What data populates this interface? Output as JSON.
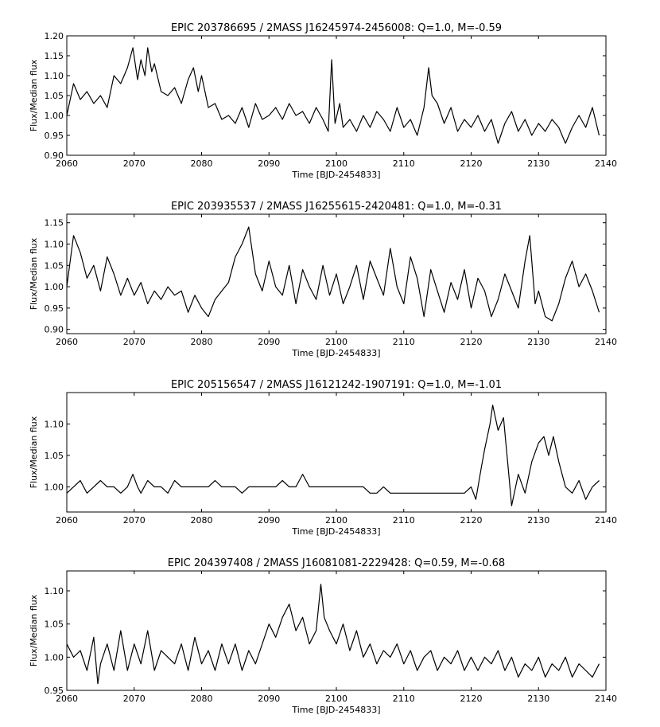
{
  "chart_data": [
    {
      "type": "line",
      "title": "EPIC 203786695 / 2MASS J16245974-2456008: Q=1.0, M=-0.59",
      "xlabel": "Time [BJD-2454833]",
      "ylabel": "Flux/Median flux",
      "xlim": [
        2060,
        2140
      ],
      "ylim": [
        0.9,
        1.2
      ],
      "xticks": [
        2060,
        2070,
        2080,
        2090,
        2100,
        2110,
        2120,
        2130,
        2140
      ],
      "xtick_labels": [
        "2060",
        "2070",
        "2080",
        "2090",
        "2100",
        "2110",
        "2120",
        "2130",
        "2140"
      ],
      "yticks": [
        0.9,
        0.95,
        1.0,
        1.05,
        1.1,
        1.15,
        1.2
      ],
      "ytick_labels": [
        "0.90",
        "0.95",
        "1.00",
        "1.05",
        "1.10",
        "1.15",
        "1.20"
      ],
      "grid": false,
      "series": [
        {
          "x": [
            2060,
            2061,
            2062,
            2063,
            2064,
            2065,
            2066,
            2067,
            2068,
            2069,
            2069.8,
            2070.5,
            2071,
            2071.6,
            2072,
            2072.6,
            2073,
            2074,
            2075,
            2076,
            2077,
            2078,
            2078.8,
            2079.5,
            2080,
            2081,
            2082,
            2083,
            2084,
            2085,
            2086,
            2087,
            2088,
            2089,
            2090,
            2091,
            2092,
            2093,
            2094,
            2095,
            2096,
            2097,
            2098,
            2098.8,
            2099.3,
            2099.8,
            2100.5,
            2101,
            2102,
            2103,
            2104,
            2105,
            2106,
            2107,
            2108,
            2109,
            2110,
            2111,
            2112,
            2113,
            2113.7,
            2114.2,
            2115,
            2116,
            2117,
            2118,
            2119,
            2120,
            2121,
            2122,
            2123,
            2124,
            2125,
            2126,
            2127,
            2128,
            2129,
            2130,
            2131,
            2132,
            2133,
            2134,
            2135,
            2136,
            2137,
            2138,
            2139
          ],
          "y": [
            1.0,
            1.08,
            1.04,
            1.06,
            1.03,
            1.05,
            1.02,
            1.1,
            1.08,
            1.12,
            1.17,
            1.09,
            1.14,
            1.1,
            1.17,
            1.11,
            1.13,
            1.06,
            1.05,
            1.07,
            1.03,
            1.09,
            1.12,
            1.06,
            1.1,
            1.02,
            1.03,
            0.99,
            1.0,
            0.98,
            1.02,
            0.97,
            1.03,
            0.99,
            1.0,
            1.02,
            0.99,
            1.03,
            1.0,
            1.01,
            0.98,
            1.02,
            0.99,
            0.96,
            1.14,
            0.98,
            1.03,
            0.97,
            0.99,
            0.96,
            1.0,
            0.97,
            1.01,
            0.99,
            0.96,
            1.02,
            0.97,
            0.99,
            0.95,
            1.02,
            1.12,
            1.05,
            1.03,
            0.98,
            1.02,
            0.96,
            0.99,
            0.97,
            1.0,
            0.96,
            0.99,
            0.93,
            0.98,
            1.01,
            0.96,
            0.99,
            0.95,
            0.98,
            0.96,
            0.99,
            0.97,
            0.93,
            0.97,
            1.0,
            0.97,
            1.02,
            0.95
          ]
        }
      ]
    },
    {
      "type": "line",
      "title": "EPIC 203935537 / 2MASS J16255615-2420481: Q=1.0, M=-0.31",
      "xlabel": "Time [BJD-2454833]",
      "ylabel": "Flux/Median flux",
      "xlim": [
        2060,
        2140
      ],
      "ylim": [
        0.89,
        1.17
      ],
      "xticks": [
        2060,
        2070,
        2080,
        2090,
        2100,
        2110,
        2120,
        2130,
        2140
      ],
      "xtick_labels": [
        "2060",
        "2070",
        "2080",
        "2090",
        "2100",
        "2110",
        "2120",
        "2130",
        "2140"
      ],
      "yticks": [
        0.9,
        0.95,
        1.0,
        1.05,
        1.1,
        1.15
      ],
      "ytick_labels": [
        "0.90",
        "0.95",
        "1.00",
        "1.05",
        "1.10",
        "1.15"
      ],
      "grid": false,
      "series": [
        {
          "x": [
            2060,
            2061,
            2062,
            2063,
            2064,
            2065,
            2066,
            2067,
            2068,
            2069,
            2070,
            2071,
            2072,
            2073,
            2074,
            2075,
            2076,
            2077,
            2078,
            2079,
            2080,
            2081,
            2082,
            2083,
            2084,
            2085,
            2086,
            2087,
            2088,
            2089,
            2090,
            2091,
            2092,
            2093,
            2094,
            2095,
            2096,
            2097,
            2098,
            2099,
            2100,
            2101,
            2102,
            2103,
            2104,
            2105,
            2106,
            2107,
            2108,
            2109,
            2110,
            2111,
            2112,
            2113,
            2114,
            2115,
            2116,
            2117,
            2118,
            2119,
            2120,
            2121,
            2122,
            2123,
            2124,
            2125,
            2126,
            2127,
            2128,
            2128.7,
            2129.5,
            2130,
            2131,
            2132,
            2133,
            2134,
            2135,
            2136,
            2137,
            2138,
            2139
          ],
          "y": [
            1.0,
            1.12,
            1.08,
            1.02,
            1.05,
            0.99,
            1.07,
            1.03,
            0.98,
            1.02,
            0.98,
            1.01,
            0.96,
            0.99,
            0.97,
            1.0,
            0.98,
            0.99,
            0.94,
            0.98,
            0.95,
            0.93,
            0.97,
            0.99,
            1.01,
            1.07,
            1.1,
            1.14,
            1.03,
            0.99,
            1.06,
            1.0,
            0.98,
            1.05,
            0.96,
            1.04,
            1.0,
            0.97,
            1.05,
            0.98,
            1.03,
            0.96,
            1.0,
            1.05,
            0.97,
            1.06,
            1.02,
            0.98,
            1.09,
            1.0,
            0.96,
            1.07,
            1.02,
            0.93,
            1.04,
            0.99,
            0.94,
            1.01,
            0.97,
            1.04,
            0.95,
            1.02,
            0.99,
            0.93,
            0.97,
            1.03,
            0.99,
            0.95,
            1.06,
            1.12,
            0.96,
            0.99,
            0.93,
            0.92,
            0.96,
            1.02,
            1.06,
            1.0,
            1.03,
            0.99,
            0.94
          ]
        }
      ]
    },
    {
      "type": "line",
      "title": "EPIC 205156547 / 2MASS J16121242-1907191: Q=1.0, M=-1.01",
      "xlabel": "Time [BJD-2454833]",
      "ylabel": "Flux/Median flux",
      "xlim": [
        2060,
        2140
      ],
      "ylim": [
        0.96,
        1.15
      ],
      "xticks": [
        2060,
        2070,
        2080,
        2090,
        2100,
        2110,
        2120,
        2130,
        2140
      ],
      "xtick_labels": [
        "2060",
        "2070",
        "2080",
        "2090",
        "2100",
        "2110",
        "2120",
        "2130",
        "2140"
      ],
      "yticks": [
        1.0,
        1.05,
        1.1
      ],
      "ytick_labels": [
        "1.00",
        "1.05",
        "1.10"
      ],
      "grid": false,
      "series": [
        {
          "x": [
            2060,
            2061,
            2062,
            2063,
            2064,
            2065,
            2066,
            2067,
            2068,
            2069,
            2069.8,
            2070.5,
            2071,
            2072,
            2073,
            2074,
            2075,
            2076,
            2077,
            2078,
            2079,
            2080,
            2081,
            2082,
            2083,
            2084,
            2085,
            2086,
            2087,
            2088,
            2089,
            2090,
            2091,
            2092,
            2093,
            2094,
            2095,
            2096,
            2097,
            2098,
            2099,
            2100,
            2101,
            2102,
            2103,
            2104,
            2105,
            2106,
            2107,
            2108,
            2109,
            2110,
            2111,
            2112,
            2113,
            2114,
            2115,
            2116,
            2117,
            2118,
            2119,
            2120,
            2120.7,
            2121.5,
            2122,
            2122.8,
            2123.2,
            2124,
            2124.8,
            2125.5,
            2126,
            2127,
            2128,
            2129,
            2130,
            2130.8,
            2131.5,
            2132.2,
            2133,
            2134,
            2135,
            2136,
            2137,
            2138,
            2139
          ],
          "y": [
            0.99,
            1.0,
            1.01,
            0.99,
            1.0,
            1.01,
            1.0,
            1.0,
            0.99,
            1.0,
            1.02,
            1.0,
            0.99,
            1.01,
            1.0,
            1.0,
            0.99,
            1.01,
            1.0,
            1.0,
            1.0,
            1.0,
            1.0,
            1.01,
            1.0,
            1.0,
            1.0,
            0.99,
            1.0,
            1.0,
            1.0,
            1.0,
            1.0,
            1.01,
            1.0,
            1.0,
            1.02,
            1.0,
            1.0,
            1.0,
            1.0,
            1.0,
            1.0,
            1.0,
            1.0,
            1.0,
            0.99,
            0.99,
            1.0,
            0.99,
            0.99,
            0.99,
            0.99,
            0.99,
            0.99,
            0.99,
            0.99,
            0.99,
            0.99,
            0.99,
            0.99,
            1.0,
            0.98,
            1.03,
            1.06,
            1.1,
            1.13,
            1.09,
            1.11,
            1.03,
            0.97,
            1.02,
            0.99,
            1.04,
            1.07,
            1.08,
            1.05,
            1.08,
            1.04,
            1.0,
            0.99,
            1.01,
            0.98,
            1.0,
            1.01
          ]
        }
      ]
    },
    {
      "type": "line",
      "title": "EPIC 204397408 / 2MASS J16081081-2229428: Q=0.59, M=-0.68",
      "xlabel": "Time [BJD-2454833]",
      "ylabel": "Flux/Median flux",
      "xlim": [
        2060,
        2140
      ],
      "ylim": [
        0.95,
        1.13
      ],
      "xticks": [
        2060,
        2070,
        2080,
        2090,
        2100,
        2110,
        2120,
        2130,
        2140
      ],
      "xtick_labels": [
        "2060",
        "2070",
        "2080",
        "2090",
        "2100",
        "2110",
        "2120",
        "2130",
        "2140"
      ],
      "yticks": [
        0.95,
        1.0,
        1.05,
        1.1
      ],
      "ytick_labels": [
        "0.95",
        "1.00",
        "1.05",
        "1.10"
      ],
      "grid": false,
      "series": [
        {
          "x": [
            2060,
            2061,
            2062,
            2063,
            2064,
            2064.6,
            2065,
            2066,
            2067,
            2068,
            2069,
            2070,
            2071,
            2072,
            2073,
            2074,
            2075,
            2076,
            2077,
            2078,
            2079,
            2080,
            2081,
            2082,
            2083,
            2084,
            2085,
            2086,
            2087,
            2088,
            2089,
            2090,
            2091,
            2092,
            2093,
            2094,
            2095,
            2096,
            2097,
            2097.7,
            2098.2,
            2099,
            2100,
            2101,
            2102,
            2103,
            2104,
            2105,
            2106,
            2107,
            2108,
            2109,
            2110,
            2111,
            2112,
            2113,
            2114,
            2115,
            2116,
            2117,
            2118,
            2119,
            2120,
            2121,
            2122,
            2123,
            2124,
            2125,
            2126,
            2127,
            2128,
            2129,
            2130,
            2131,
            2132,
            2133,
            2134,
            2135,
            2136,
            2137,
            2138,
            2139
          ],
          "y": [
            1.02,
            1.0,
            1.01,
            0.98,
            1.03,
            0.96,
            0.99,
            1.02,
            0.98,
            1.04,
            0.98,
            1.02,
            0.99,
            1.04,
            0.98,
            1.01,
            1.0,
            0.99,
            1.02,
            0.98,
            1.03,
            0.99,
            1.01,
            0.98,
            1.02,
            0.99,
            1.02,
            0.98,
            1.01,
            0.99,
            1.02,
            1.05,
            1.03,
            1.06,
            1.08,
            1.04,
            1.06,
            1.02,
            1.04,
            1.11,
            1.06,
            1.04,
            1.02,
            1.05,
            1.01,
            1.04,
            1.0,
            1.02,
            0.99,
            1.01,
            1.0,
            1.02,
            0.99,
            1.01,
            0.98,
            1.0,
            1.01,
            0.98,
            1.0,
            0.99,
            1.01,
            0.98,
            1.0,
            0.98,
            1.0,
            0.99,
            1.01,
            0.98,
            1.0,
            0.97,
            0.99,
            0.98,
            1.0,
            0.97,
            0.99,
            0.98,
            1.0,
            0.97,
            0.99,
            0.98,
            0.97,
            0.99
          ]
        }
      ]
    }
  ]
}
